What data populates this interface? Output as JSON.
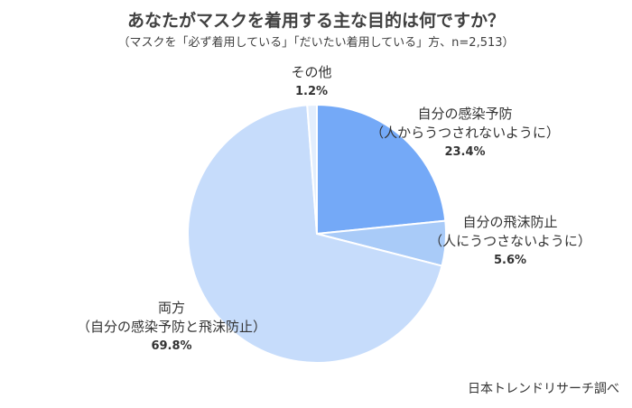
{
  "chart_data": {
    "type": "pie",
    "title": "あなたがマスクを着用する主な目的は何ですか？",
    "subtitle": "（マスクを「必ず着用している」「だいたい着用している」方、n=2,513）",
    "slices": [
      {
        "name": "自分の感染予防",
        "note": "（人からうつされないように）",
        "value": 23.4,
        "label": "23.4%",
        "color": "#74a9f7"
      },
      {
        "name": "自分の飛沫防止",
        "note": "（人にうつさないように）",
        "value": 5.6,
        "label": "5.6%",
        "color": "#a9cbf8"
      },
      {
        "name": "両方",
        "note": "（自分の感染予防と飛沫防止）",
        "value": 69.8,
        "label": "69.8%",
        "color": "#c6dcfb"
      },
      {
        "name": "その他",
        "note": "",
        "value": 1.2,
        "label": "1.2%",
        "color": "#e3eefd"
      }
    ],
    "source": "日本トレンドリサーチ調べ"
  }
}
